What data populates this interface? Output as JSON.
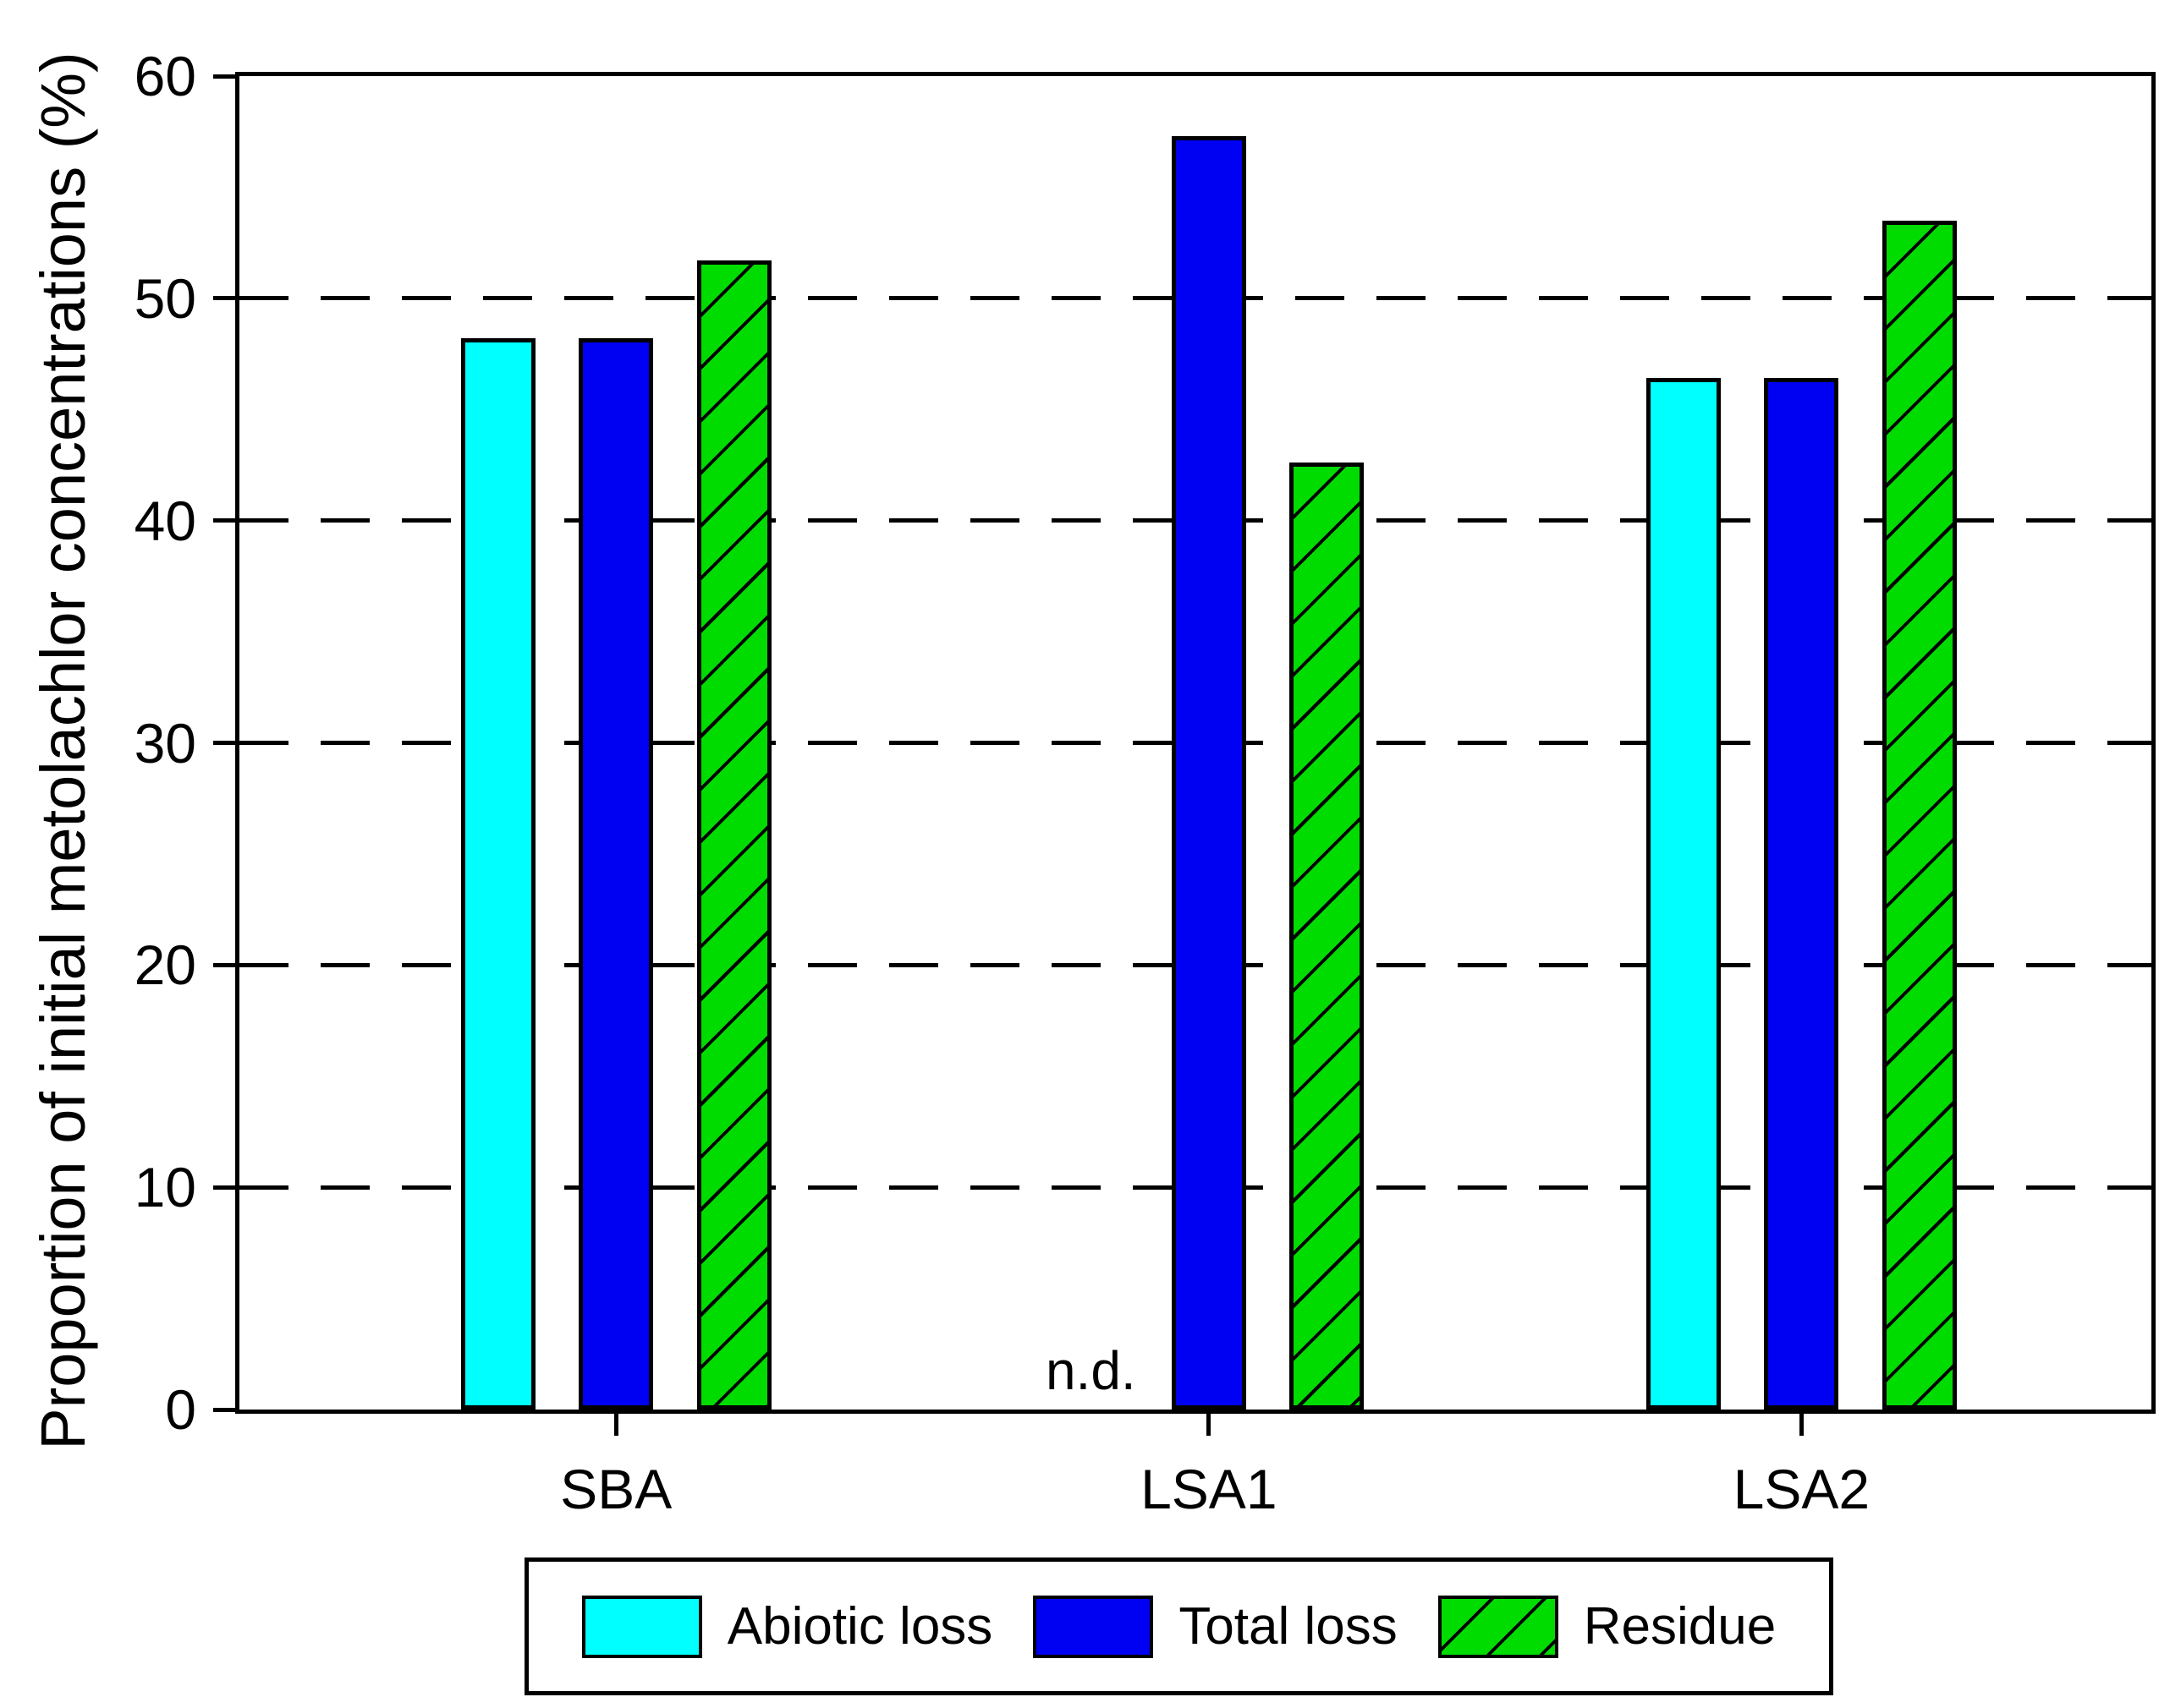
{
  "chart_data": {
    "type": "bar",
    "title": "",
    "ylabel": "Proportion of initial metolachlor concentrations (%)",
    "xlabel": "",
    "ylim": [
      0,
      60
    ],
    "yticks": [
      0,
      10,
      20,
      30,
      40,
      50,
      60
    ],
    "grid": "horizontal",
    "grid_style": {
      "pattern": "long-dash",
      "color": "#000000",
      "shown_at": [
        10,
        20,
        30,
        40,
        50
      ]
    },
    "legend_position": "bottom",
    "axis_color": "#000000",
    "categories": [
      "SBA",
      "LSA1",
      "LSA2"
    ],
    "series": [
      {
        "name": "Abiotic loss",
        "color": "#00ffff",
        "hatch": false,
        "values": [
          48.2,
          null,
          46.4
        ]
      },
      {
        "name": "Total loss",
        "color": "#0000f2",
        "hatch": false,
        "values": [
          48.2,
          57.3,
          46.4
        ]
      },
      {
        "name": "Residue",
        "color": "#00dc00",
        "hatch": true,
        "values": [
          51.7,
          42.6,
          53.5
        ]
      }
    ],
    "annotations": [
      {
        "text": "n.d.",
        "category": "LSA1",
        "series": "Abiotic loss",
        "meaning": "bar not shown"
      }
    ]
  }
}
